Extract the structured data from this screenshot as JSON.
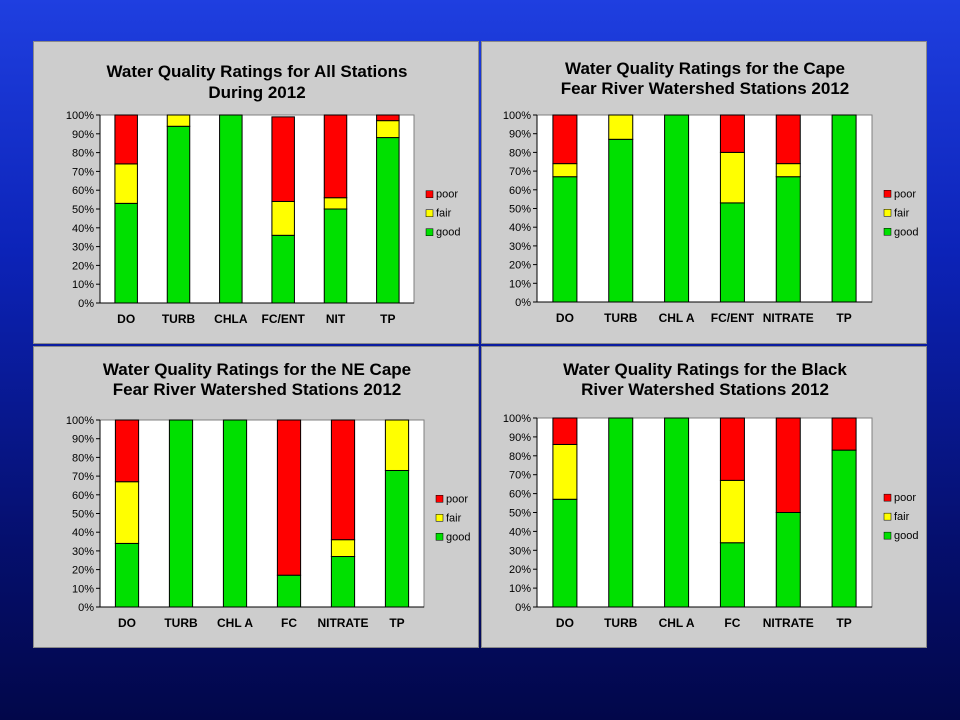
{
  "chart_data": [
    {
      "type": "bar",
      "stacked": true,
      "title": [
        "Water Quality Ratings for All Stations",
        "During 2012"
      ],
      "categories": [
        "DO",
        "TURB",
        "CHLA",
        "FC/ENT",
        "NIT",
        "TP"
      ],
      "series": [
        {
          "name": "good",
          "values": [
            53,
            94,
            100,
            36,
            50,
            88
          ]
        },
        {
          "name": "fair",
          "values": [
            21,
            6,
            0,
            18,
            6,
            9
          ]
        },
        {
          "name": "poor",
          "values": [
            26,
            0,
            0,
            45,
            44,
            3
          ]
        }
      ],
      "ylim": [
        0,
        100
      ],
      "yticks": [
        "0%",
        "10%",
        "20%",
        "30%",
        "40%",
        "50%",
        "60%",
        "70%",
        "80%",
        "90%",
        "100%"
      ],
      "legend": "right",
      "colors": {
        "good": "#00e000",
        "fair": "#ffff00",
        "poor": "#ff0000"
      }
    },
    {
      "type": "bar",
      "stacked": true,
      "title": [
        "Water Quality Ratings for the Cape",
        "Fear River Watershed Stations 2012"
      ],
      "categories": [
        "DO",
        "TURB",
        "CHL A",
        "FC/ENT",
        "NITRATE",
        "TP"
      ],
      "series": [
        {
          "name": "good",
          "values": [
            67,
            87,
            100,
            53,
            67,
            100
          ]
        },
        {
          "name": "fair",
          "values": [
            7,
            13,
            0,
            27,
            7,
            0
          ]
        },
        {
          "name": "poor",
          "values": [
            26,
            0,
            0,
            20,
            26,
            0
          ]
        }
      ],
      "ylim": [
        0,
        100
      ],
      "yticks": [
        "0%",
        "10%",
        "20%",
        "30%",
        "40%",
        "50%",
        "60%",
        "70%",
        "80%",
        "90%",
        "100%"
      ],
      "legend": "right",
      "colors": {
        "good": "#00e000",
        "fair": "#ffff00",
        "poor": "#ff0000"
      }
    },
    {
      "type": "bar",
      "stacked": true,
      "title": [
        "Water Quality Ratings for the NE Cape",
        "Fear River Watershed Stations 2012"
      ],
      "categories": [
        "DO",
        "TURB",
        "CHL A",
        "FC",
        "NITRATE",
        "TP"
      ],
      "series": [
        {
          "name": "good",
          "values": [
            34,
            100,
            100,
            17,
            27,
            73
          ]
        },
        {
          "name": "fair",
          "values": [
            33,
            0,
            0,
            0,
            9,
            27
          ]
        },
        {
          "name": "poor",
          "values": [
            33,
            0,
            0,
            83,
            64,
            0
          ]
        }
      ],
      "ylim": [
        0,
        100
      ],
      "yticks": [
        "0%",
        "10%",
        "20%",
        "30%",
        "40%",
        "50%",
        "60%",
        "70%",
        "80%",
        "90%",
        "100%"
      ],
      "legend": "right",
      "colors": {
        "good": "#00e000",
        "fair": "#ffff00",
        "poor": "#ff0000"
      }
    },
    {
      "type": "bar",
      "stacked": true,
      "title": [
        "Water Quality Ratings for the Black",
        "River Watershed Stations 2012"
      ],
      "categories": [
        "DO",
        "TURB",
        "CHL A",
        "FC",
        "NITRATE",
        "TP"
      ],
      "series": [
        {
          "name": "good",
          "values": [
            57,
            100,
            100,
            34,
            50,
            83
          ]
        },
        {
          "name": "fair",
          "values": [
            29,
            0,
            0,
            33,
            0,
            0
          ]
        },
        {
          "name": "poor",
          "values": [
            14,
            0,
            0,
            33,
            50,
            17
          ]
        }
      ],
      "ylim": [
        0,
        100
      ],
      "yticks": [
        "0%",
        "10%",
        "20%",
        "30%",
        "40%",
        "50%",
        "60%",
        "70%",
        "80%",
        "90%",
        "100%"
      ],
      "legend": "right",
      "colors": {
        "good": "#00e000",
        "fair": "#ffff00",
        "poor": "#ff0000"
      }
    }
  ]
}
